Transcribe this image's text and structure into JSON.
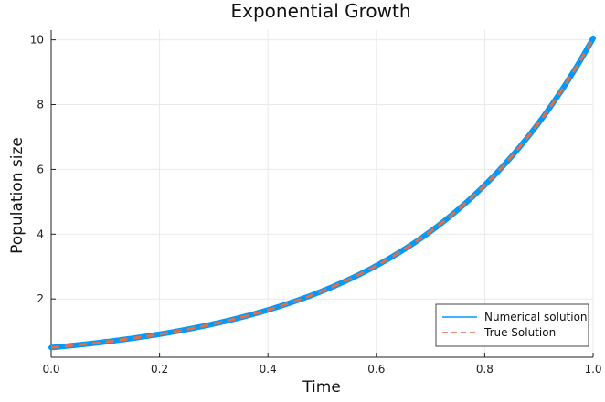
{
  "chart_data": {
    "type": "line",
    "title": "Exponential Growth",
    "xlabel": "Time",
    "ylabel": "Population size",
    "xlim": [
      0.0,
      1.0
    ],
    "ylim": [
      0.2,
      10.3
    ],
    "x_ticks": [
      0.0,
      0.2,
      0.4,
      0.6,
      0.8,
      1.0
    ],
    "x_tick_labels": [
      "0.0",
      "0.2",
      "0.4",
      "0.6",
      "0.8",
      "1.0"
    ],
    "y_ticks": [
      2,
      4,
      6,
      8,
      10
    ],
    "y_tick_labels": [
      "2",
      "4",
      "6",
      "8",
      "10"
    ],
    "grid": true,
    "legend_position": "bottom-right",
    "series": [
      {
        "name": "Numerical solution",
        "color": "#009AFA",
        "style": "solid",
        "x": [
          0.0,
          0.1,
          0.2,
          0.3,
          0.4,
          0.5,
          0.6,
          0.7,
          0.8,
          0.9,
          1.0
        ],
        "y": [
          0.5,
          0.67,
          0.91,
          1.23,
          1.66,
          2.24,
          3.03,
          4.09,
          5.52,
          7.45,
          10.05
        ]
      },
      {
        "name": "True Solution",
        "color": "#E26F46",
        "style": "dashed",
        "x": [
          0.0,
          0.1,
          0.2,
          0.3,
          0.4,
          0.5,
          0.6,
          0.7,
          0.8,
          0.9,
          1.0
        ],
        "y": [
          0.5,
          0.67,
          0.91,
          1.23,
          1.66,
          2.24,
          3.03,
          4.09,
          5.52,
          7.45,
          10.05
        ]
      }
    ]
  }
}
